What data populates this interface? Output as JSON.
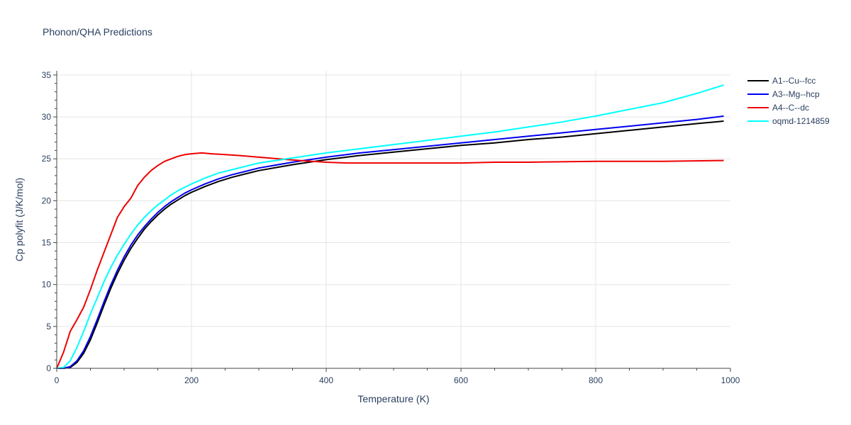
{
  "chart_data": {
    "type": "line",
    "title": "Phonon/QHA Predictions",
    "xlabel": "Temperature (K)",
    "ylabel": "Cp polyfit (J/K/mol)",
    "xlim": [
      0,
      1000
    ],
    "ylim": [
      0,
      35.5
    ],
    "x_ticks": [
      0,
      200,
      400,
      600,
      800,
      1000
    ],
    "y_ticks": [
      0,
      5,
      10,
      15,
      20,
      25,
      30,
      35
    ],
    "grid": true,
    "legend_position": "top-right",
    "series": [
      {
        "name": "A1--Cu--fcc",
        "color": "#000000",
        "x": [
          0,
          10,
          20,
          30,
          40,
          50,
          60,
          70,
          80,
          90,
          100,
          110,
          120,
          130,
          140,
          150,
          160,
          170,
          180,
          190,
          200,
          220,
          240,
          260,
          280,
          300,
          350,
          400,
          450,
          500,
          550,
          600,
          650,
          700,
          750,
          800,
          850,
          900,
          950,
          990
        ],
        "y": [
          0,
          0,
          0.1,
          0.7,
          1.8,
          3.4,
          5.4,
          7.5,
          9.5,
          11.3,
          12.9,
          14.3,
          15.5,
          16.6,
          17.5,
          18.3,
          19.0,
          19.6,
          20.1,
          20.6,
          21.0,
          21.7,
          22.3,
          22.8,
          23.2,
          23.6,
          24.3,
          24.9,
          25.4,
          25.8,
          26.2,
          26.6,
          26.9,
          27.3,
          27.6,
          28.0,
          28.4,
          28.8,
          29.2,
          29.5
        ]
      },
      {
        "name": "A3--Mg--hcp",
        "color": "#0000ee",
        "x": [
          0,
          10,
          20,
          30,
          40,
          50,
          60,
          70,
          80,
          90,
          100,
          110,
          120,
          130,
          140,
          150,
          160,
          170,
          180,
          190,
          200,
          220,
          240,
          260,
          280,
          300,
          350,
          400,
          450,
          500,
          550,
          600,
          650,
          700,
          750,
          800,
          850,
          900,
          950,
          990
        ],
        "y": [
          0,
          0,
          0.2,
          0.9,
          2.1,
          3.8,
          5.8,
          7.9,
          9.9,
          11.7,
          13.3,
          14.7,
          15.9,
          16.9,
          17.8,
          18.6,
          19.3,
          19.9,
          20.4,
          20.9,
          21.3,
          22.0,
          22.6,
          23.1,
          23.5,
          23.9,
          24.6,
          25.2,
          25.7,
          26.1,
          26.5,
          26.9,
          27.3,
          27.7,
          28.1,
          28.5,
          28.9,
          29.3,
          29.7,
          30.1
        ]
      },
      {
        "name": "A4--C--dc",
        "color": "#ee0000",
        "x": [
          0,
          10,
          20,
          30,
          40,
          50,
          60,
          70,
          80,
          90,
          100,
          110,
          120,
          130,
          140,
          150,
          160,
          170,
          180,
          190,
          200,
          215,
          230,
          250,
          270,
          300,
          330,
          360,
          400,
          430,
          480,
          530,
          600,
          650,
          700,
          800,
          900,
          990
        ],
        "y": [
          0,
          1.9,
          4.4,
          5.8,
          7.3,
          9.4,
          11.7,
          13.8,
          15.9,
          18.0,
          19.3,
          20.3,
          21.8,
          22.8,
          23.6,
          24.2,
          24.7,
          25.0,
          25.3,
          25.5,
          25.6,
          25.7,
          25.6,
          25.5,
          25.4,
          25.2,
          25.0,
          24.8,
          24.6,
          24.5,
          24.5,
          24.5,
          24.5,
          24.6,
          24.6,
          24.7,
          24.7,
          24.8
        ]
      },
      {
        "name": "oqmd-1214859",
        "color": "#00ffff",
        "x": [
          0,
          10,
          20,
          30,
          40,
          50,
          60,
          70,
          80,
          90,
          100,
          110,
          120,
          130,
          140,
          150,
          160,
          170,
          180,
          190,
          200,
          220,
          240,
          260,
          280,
          300,
          350,
          400,
          450,
          500,
          550,
          600,
          650,
          700,
          750,
          800,
          850,
          900,
          950,
          990
        ],
        "y": [
          0,
          0.1,
          0.9,
          2.5,
          4.4,
          6.5,
          8.4,
          10.3,
          12.0,
          13.5,
          14.8,
          16.0,
          17.1,
          18.0,
          18.8,
          19.5,
          20.1,
          20.7,
          21.2,
          21.6,
          22.0,
          22.7,
          23.3,
          23.7,
          24.1,
          24.5,
          25.1,
          25.7,
          26.2,
          26.7,
          27.2,
          27.7,
          28.2,
          28.8,
          29.4,
          30.1,
          30.9,
          31.7,
          32.8,
          33.8
        ]
      }
    ]
  }
}
